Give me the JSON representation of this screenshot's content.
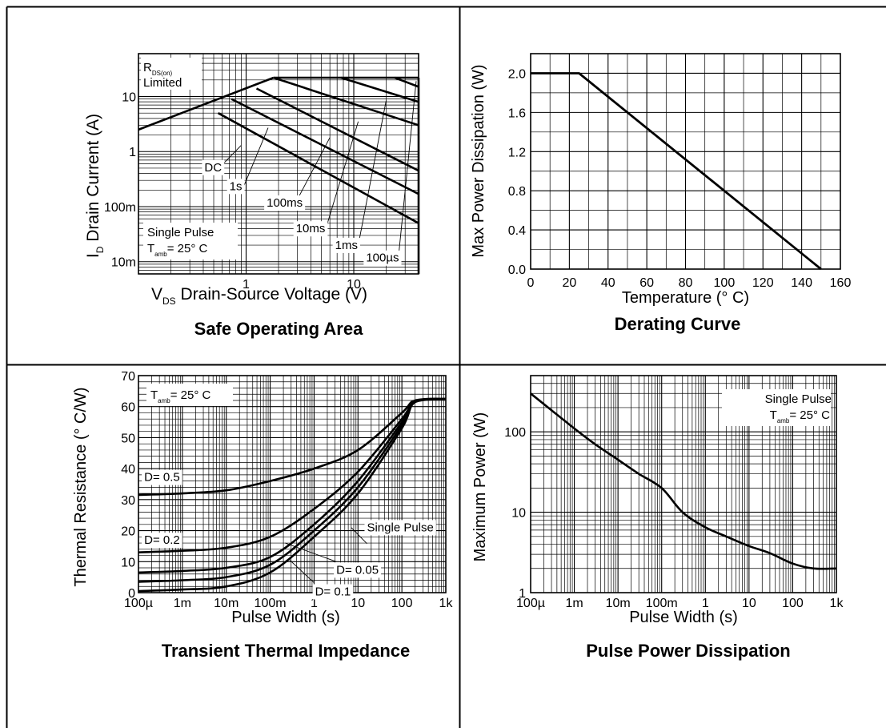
{
  "chart_data": [
    {
      "type": "line",
      "title": "Safe Operating Area",
      "xlabel": "Drain-Source Voltage (V)",
      "xlabel_symbol": "V",
      "xlabel_sub": "DS",
      "ylabel": "Drain Current (A)",
      "ylabel_symbol": "I",
      "ylabel_sub": "D",
      "x_scale": "log",
      "y_scale": "log",
      "xlim": [
        0.1,
        40
      ],
      "ylim": [
        0.006,
        60
      ],
      "x_ticks": [
        1,
        10
      ],
      "x_tick_labels": [
        "1",
        "10"
      ],
      "y_ticks": [
        0.01,
        0.1,
        1,
        10
      ],
      "y_tick_labels": [
        "10m",
        "100m",
        "1",
        "10"
      ],
      "grid": true,
      "rds_label_main": "R",
      "rds_label_sub": "DS(on)",
      "rds_label_line2": "Limited",
      "conditions": {
        "line1": "Single Pulse",
        "line2_main": "T",
        "line2_sub": "amb",
        "line2_rest": "= 25° C"
      },
      "series": [
        {
          "name": "DC",
          "label_x": 0.41,
          "label_y": 0.44,
          "leader": [
            [
              0.56,
              0.5
            ],
            [
              0.9,
              1.3
            ]
          ],
          "x": [
            0.55,
            40
          ],
          "y": [
            5,
            0.05
          ]
        },
        {
          "name": "1s",
          "label_x": 0.7,
          "label_y": 0.2,
          "leader": [
            [
              0.92,
              0.2
            ],
            [
              1.6,
              2.7
            ]
          ],
          "x": [
            0.73,
            40
          ],
          "y": [
            9,
            0.17
          ]
        },
        {
          "name": "100ms",
          "label_x": 1.55,
          "label_y": 0.1,
          "leader": [
            [
              2.9,
              0.12
            ],
            [
              6,
              1.8
            ]
          ],
          "x": [
            1.25,
            40
          ],
          "y": [
            14,
            0.45
          ]
        },
        {
          "name": "10ms",
          "label_x": 2.9,
          "label_y": 0.034,
          "leader": [
            [
              5.5,
              0.04
            ],
            [
              11,
              3.5
            ]
          ],
          "x": [
            1.8,
            40
          ],
          "y": [
            22,
            3
          ]
        },
        {
          "name": "1ms",
          "label_x": 6.7,
          "label_y": 0.017,
          "leader": [
            [
              11,
              0.02
            ],
            [
              20,
              8.5
            ]
          ],
          "x": [
            7.6,
            40
          ],
          "y": [
            22,
            8
          ]
        },
        {
          "name": "100µs",
          "label_x": 13,
          "label_y": 0.01,
          "leader": [
            [
              26,
              0.012
            ],
            [
              38,
              19
            ]
          ],
          "x": [
            24,
            40
          ],
          "y": [
            22,
            15
          ]
        }
      ],
      "limits": {
        "rds_on_line": {
          "x": [
            0.1,
            1.8
          ],
          "y": [
            2.5,
            22
          ]
        },
        "current_limit_a": 22,
        "voltage_limit_v": 40
      }
    },
    {
      "type": "line",
      "title": "Derating Curve",
      "xlabel": "Temperature (° C)",
      "ylabel": "Max Power Dissipation (W)",
      "xlim": [
        0,
        160
      ],
      "ylim": [
        0,
        2.2
      ],
      "x_ticks": [
        0,
        20,
        40,
        60,
        80,
        100,
        120,
        140,
        160
      ],
      "x_tick_labels": [
        "0",
        "20",
        "40",
        "60",
        "80",
        "100",
        "120",
        "140",
        "160"
      ],
      "y_ticks": [
        0,
        0.4,
        0.8,
        1.2,
        1.6,
        2.0
      ],
      "y_tick_labels": [
        "0.0",
        "0.4",
        "0.8",
        "1.2",
        "1.6",
        "2.0"
      ],
      "grid": true,
      "series": [
        {
          "x": [
            0,
            25,
            150
          ],
          "y": [
            2.0,
            2.0,
            0.0
          ]
        }
      ]
    },
    {
      "type": "line",
      "title": "Transient Thermal Impedance",
      "xlabel": "Pulse Width (s)",
      "ylabel": "Thermal Resistance (° C/W)",
      "x_scale": "log",
      "xlim": [
        0.0001,
        1000
      ],
      "ylim": [
        0,
        70
      ],
      "x_ticks": [
        0.0001,
        0.001,
        0.01,
        0.1,
        1,
        10,
        100,
        1000
      ],
      "x_tick_labels": [
        "100µ",
        "1m",
        "10m",
        "100m",
        "1",
        "10",
        "100",
        "1k"
      ],
      "y_ticks": [
        0,
        10,
        20,
        30,
        40,
        50,
        60,
        70
      ],
      "y_tick_labels": [
        "0",
        "10",
        "20",
        "30",
        "40",
        "50",
        "60",
        "70"
      ],
      "grid": true,
      "conditions": {
        "line1_main": "T",
        "line1_sub": "amb",
        "line1_rest": "= 25° C"
      },
      "x": [
        0.0001,
        0.001,
        0.01,
        0.1,
        1,
        10,
        100,
        200,
        1000
      ],
      "series": [
        {
          "name": "D= 0.5",
          "label_x": 0.000135,
          "label_y": 36,
          "y": [
            31.5,
            32,
            33,
            36,
            40,
            46,
            58,
            62,
            62.5
          ]
        },
        {
          "name": "D= 0.2",
          "label_x": 0.000135,
          "label_y": 15.7,
          "y": [
            13,
            13.5,
            14.5,
            18,
            27,
            39,
            56,
            61.5,
            62.5
          ]
        },
        {
          "name": "D= 0.1",
          "label_x": 1.05,
          "label_y": -0.9,
          "leader": [
            [
              1,
              3.2
            ],
            [
              0.28,
              10.5
            ]
          ],
          "y": [
            6.5,
            7,
            8,
            11.5,
            22,
            36,
            55,
            61.5,
            62.5
          ]
        },
        {
          "name": "D= 0.05",
          "label_x": 3.2,
          "label_y": 6.1,
          "leader": [
            [
              3.2,
              10
            ],
            [
              0.22,
              16
            ]
          ],
          "y": [
            3.5,
            4,
            5,
            9,
            20,
            34,
            54,
            61.5,
            62.5
          ]
        },
        {
          "name": "Single Pulse",
          "label_x": 16,
          "label_y": 19.8,
          "leader": [
            [
              16,
              15.8
            ],
            [
              7,
              21
            ]
          ],
          "y": [
            0.5,
            1,
            2,
            6.5,
            18,
            32,
            53,
            61.5,
            62.5
          ]
        }
      ]
    },
    {
      "type": "line",
      "title": "Pulse Power Dissipation",
      "xlabel": "Pulse Width (s)",
      "ylabel": "Maximum Power (W)",
      "x_scale": "log",
      "y_scale": "log",
      "xlim": [
        0.0001,
        1000
      ],
      "ylim": [
        1,
        500
      ],
      "x_ticks": [
        0.0001,
        0.001,
        0.01,
        0.1,
        1,
        10,
        100,
        1000
      ],
      "x_tick_labels": [
        "100µ",
        "1m",
        "10m",
        "100m",
        "1",
        "10",
        "100",
        "1k"
      ],
      "y_ticks": [
        1,
        10,
        100
      ],
      "y_tick_labels": [
        "1",
        "10",
        "100"
      ],
      "grid": true,
      "conditions": {
        "line1": "Single Pulse",
        "line2_main": "T",
        "line2_sub": "amb",
        "line2_rest": "= 25° C"
      },
      "series": [
        {
          "x": [
            0.0001,
            0.001,
            0.003,
            0.01,
            0.03,
            0.1,
            0.3,
            1,
            3,
            10,
            30,
            100,
            300,
            1000
          ],
          "y": [
            300,
            110,
            70,
            45,
            30,
            20,
            10,
            6.5,
            5,
            3.8,
            3.1,
            2.3,
            2.0,
            2.0
          ]
        }
      ]
    }
  ]
}
